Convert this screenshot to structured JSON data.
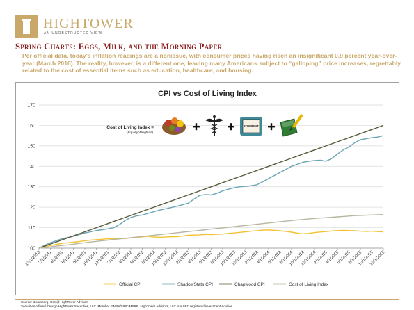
{
  "header": {
    "brand": "HIGHTOWER",
    "tagline": "AN UNOBSTRUCTED VIEW",
    "headline": "Spring Charts: Eggs, Milk, and the Morning Paper",
    "intro": "Per official data, today's inflation readings are a nonissue, with consumer prices having risen an insignificant 0.9 percent year-over-year (March 2016). The reality, however, is a different one, leaving many Americans subject to “galloping” price increases, regrettably related to the cost of essential items such as education, healthcare, and housing."
  },
  "footer": {
    "source": "Source: Bloomberg, GIS @ HighTower Advisors",
    "disclaimer": "Securities offered through HighTower Securities, LLC. Member FINRA/SIPC/MSRB. HighTower Advisors, LLC is a SEC registered investment Adviser."
  },
  "chart_data": {
    "type": "line",
    "title": "CPI vs Cost of Living Index",
    "annotation": "Cost of Living Index =",
    "annotation_sub": "(Equally Weighted)",
    "annotation_items": [
      "food-produce-icon",
      "plus",
      "caduceus-icon",
      "plus",
      "for-rent-sign-icon",
      "plus",
      "book-pencil-icon"
    ],
    "annotation_sign": "FOR RENT",
    "ylim": [
      100,
      170
    ],
    "yticks": [
      100,
      110,
      120,
      130,
      140,
      150,
      160,
      170
    ],
    "xticks": [
      "12/1/2010",
      "2/1/2011",
      "4/1/2011",
      "6/1/2011",
      "8/1/2011",
      "10/1/2011",
      "12/1/2011",
      "2/1/2012",
      "4/1/2012",
      "6/1/2012",
      "8/1/2012",
      "10/1/2012",
      "12/1/2012",
      "2/1/2013",
      "4/1/2013",
      "6/1/2013",
      "8/1/2013",
      "10/1/2013",
      "12/1/2013",
      "2/1/2014",
      "4/1/2014",
      "6/1/2014",
      "8/1/2014",
      "10/1/2014",
      "12/1/2014",
      "2/1/2015",
      "4/1/2015",
      "6/1/2015",
      "8/1/2015",
      "10/1/2015",
      "12/1/2015"
    ],
    "grid": true,
    "legend_position": "bottom",
    "series": [
      {
        "name": "Official CPI",
        "color": "#f2c230",
        "values": [
          100,
          100.5,
          101.3,
          101.8,
          102.3,
          102.6,
          102.9,
          103.2,
          103.6,
          103.9,
          104.1,
          104.3,
          104.6,
          104.6,
          104.8,
          104.7,
          105.0,
          105.3,
          105.5,
          105.8,
          105.4,
          105.3,
          105.4,
          105.6,
          105.6,
          105.9,
          106.3,
          106.4,
          106.5,
          106.7,
          106.6,
          106.8,
          106.9,
          107.2,
          107.4,
          107.7,
          108.0,
          108.3,
          108.5,
          108.8,
          108.9,
          108.7,
          108.5,
          108.2,
          107.8,
          107.3,
          107.0,
          107.2,
          107.6,
          107.9,
          108.1,
          108.4,
          108.6,
          108.7,
          108.6,
          108.5,
          108.3,
          108.2,
          108.3,
          108.1,
          108.0
        ]
      },
      {
        "name": "ShadowStats CPI",
        "color": "#6aa4b4",
        "values": [
          100,
          101.4,
          102.6,
          103.6,
          104.6,
          105.2,
          105.8,
          106.6,
          107.4,
          108.0,
          108.6,
          109.0,
          109.4,
          110.0,
          111.5,
          113.5,
          115.0,
          115.8,
          116.2,
          117.0,
          117.8,
          118.6,
          119.2,
          119.8,
          120.5,
          121.2,
          122.0,
          124.0,
          125.8,
          126.2,
          126.0,
          126.8,
          128.0,
          128.8,
          129.5,
          130.0,
          130.2,
          130.5,
          131.0,
          132.5,
          134.0,
          135.5,
          137.0,
          138.5,
          140.0,
          141.0,
          142.0,
          142.5,
          142.8,
          143.0,
          142.5,
          143.8,
          146.0,
          148.0,
          149.5,
          151.5,
          153.0,
          153.5,
          154.0,
          154.3,
          155.0
        ]
      },
      {
        "name": "Chapwood CPI",
        "color": "#5a5a3a",
        "values": [
          100,
          101,
          102,
          103,
          104,
          105,
          106,
          107,
          108,
          109,
          110,
          111,
          112,
          113,
          114,
          115,
          116,
          117,
          118,
          119,
          120,
          121,
          122,
          123,
          124,
          125,
          126,
          127,
          128,
          129,
          130,
          131,
          132,
          133,
          134,
          135,
          136,
          137,
          138,
          139,
          140,
          141,
          142,
          143,
          144,
          145,
          146,
          147,
          148,
          149,
          150,
          151,
          152,
          153,
          154,
          155,
          156,
          157,
          158,
          159,
          160
        ]
      },
      {
        "name": "Cost of Living Index",
        "color": "#b8b6a0",
        "values": [
          100,
          100.3,
          100.6,
          101.0,
          101.3,
          101.6,
          101.9,
          102.3,
          102.6,
          103.0,
          103.3,
          103.6,
          103.9,
          104.2,
          104.5,
          104.8,
          105.1,
          105.4,
          105.7,
          106.0,
          106.3,
          106.6,
          106.9,
          107.2,
          107.5,
          107.8,
          108.1,
          108.4,
          108.7,
          109.0,
          109.3,
          109.6,
          109.9,
          110.2,
          110.5,
          110.8,
          111.1,
          111.4,
          111.7,
          112.0,
          112.3,
          112.6,
          112.9,
          113.2,
          113.5,
          113.8,
          114.0,
          114.3,
          114.5,
          114.7,
          114.9,
          115.1,
          115.3,
          115.5,
          115.7,
          115.9,
          116.0,
          116.1,
          116.2,
          116.3,
          116.4
        ]
      }
    ]
  }
}
